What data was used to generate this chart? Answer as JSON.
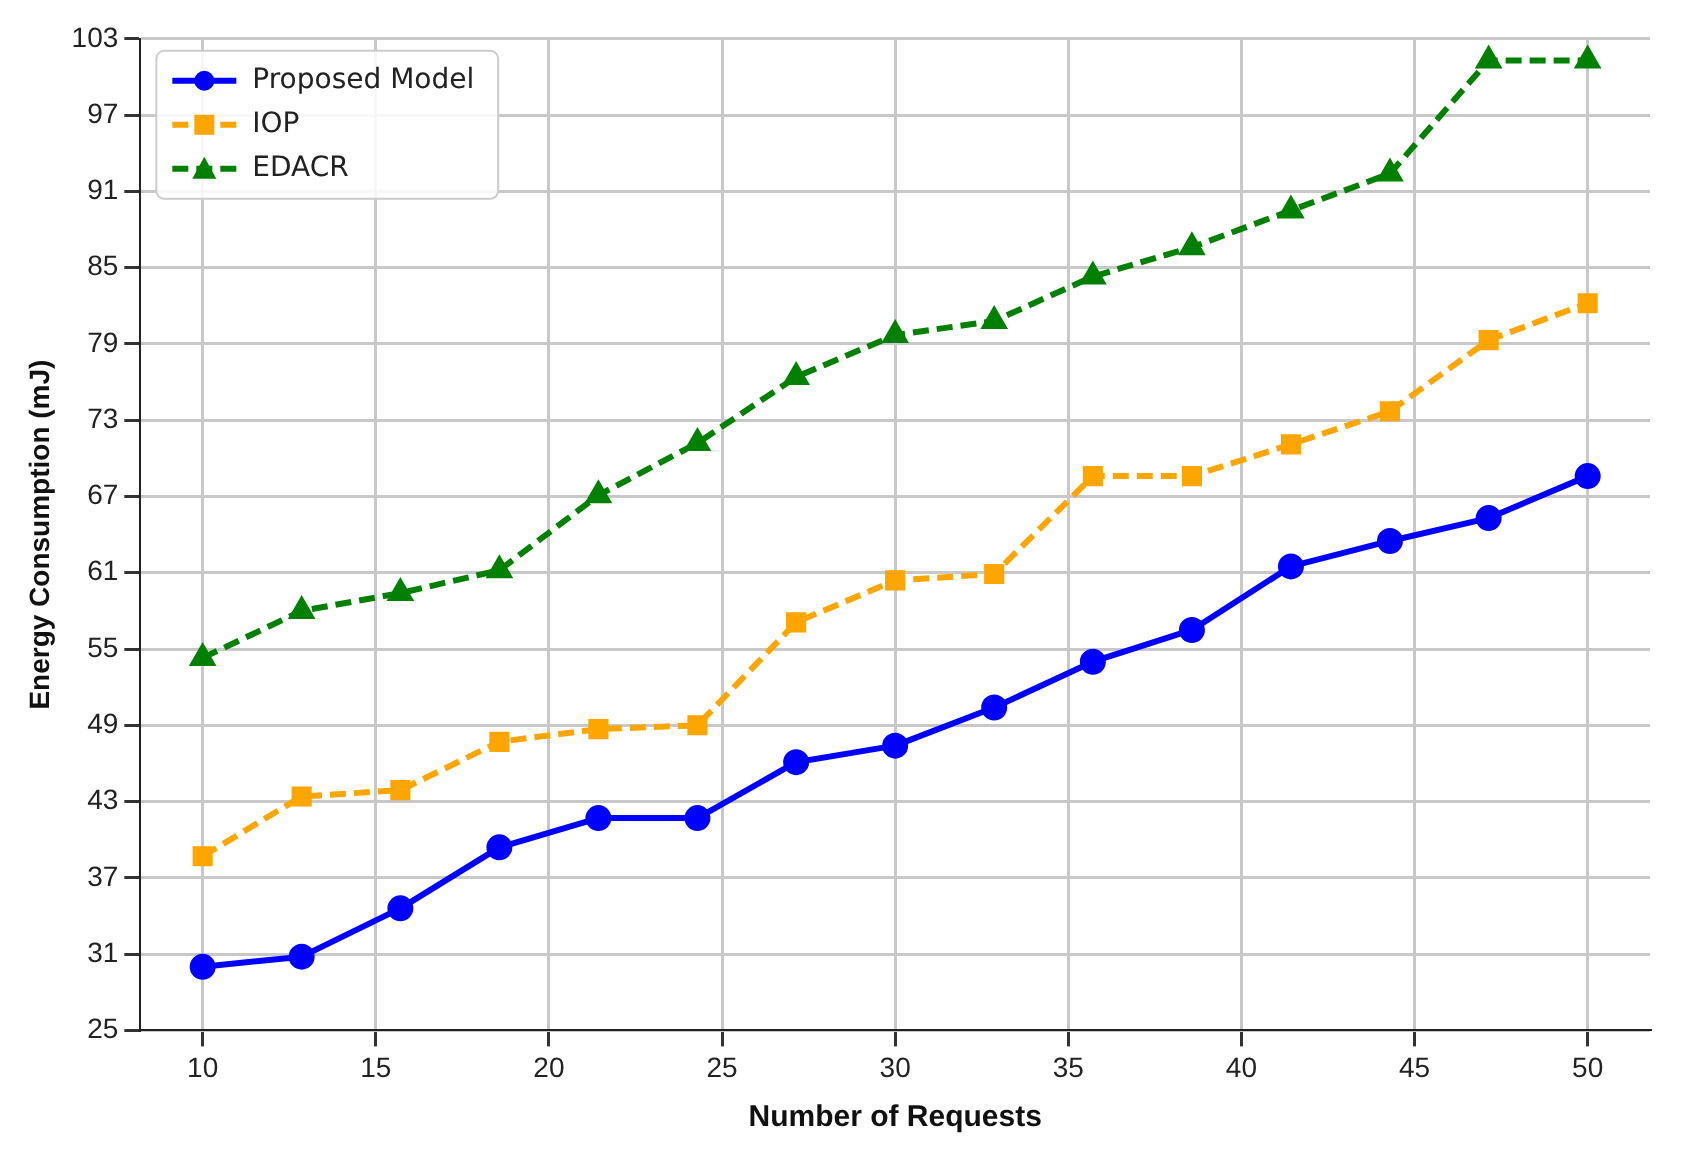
{
  "chart_data": {
    "type": "line",
    "xlabel": "Number of Requests",
    "ylabel": "Energy Consumption (mJ)",
    "x": [
      10,
      12.86,
      15.71,
      18.57,
      21.43,
      24.29,
      27.14,
      30,
      32.86,
      35.71,
      38.57,
      41.43,
      44.29,
      47.14,
      50
    ],
    "xlim": [
      8.2,
      51.8
    ],
    "xticks": [
      10,
      15,
      20,
      25,
      30,
      35,
      40,
      45,
      50
    ],
    "ylim": [
      25,
      103
    ],
    "yticks": [
      25,
      31,
      37,
      43,
      49,
      55,
      61,
      67,
      73,
      79,
      85,
      91,
      97,
      103
    ],
    "grid": true,
    "legend": "top left",
    "series": [
      {
        "name": "Proposed Model",
        "color": "#0000ff",
        "marker": "circle",
        "line_style": "solid",
        "values": [
          30.0,
          30.8,
          34.6,
          39.4,
          41.7,
          41.7,
          46.1,
          47.4,
          50.4,
          54.0,
          56.5,
          61.5,
          63.5,
          65.3,
          68.6
        ]
      },
      {
        "name": "IOP",
        "color": "#ffa500",
        "marker": "square",
        "line_style": "dashed",
        "values": [
          38.7,
          43.4,
          43.9,
          47.7,
          48.7,
          49.0,
          57.1,
          60.4,
          60.9,
          68.6,
          68.6,
          71.1,
          73.7,
          79.3,
          82.2
        ]
      },
      {
        "name": "EDACR",
        "color": "#008000",
        "marker": "triangle",
        "line_style": "dashed",
        "values": [
          54.3,
          58.0,
          59.4,
          61.2,
          67.1,
          71.2,
          76.4,
          79.7,
          80.8,
          84.3,
          86.6,
          89.5,
          92.4,
          101.3,
          101.3
        ]
      }
    ]
  }
}
